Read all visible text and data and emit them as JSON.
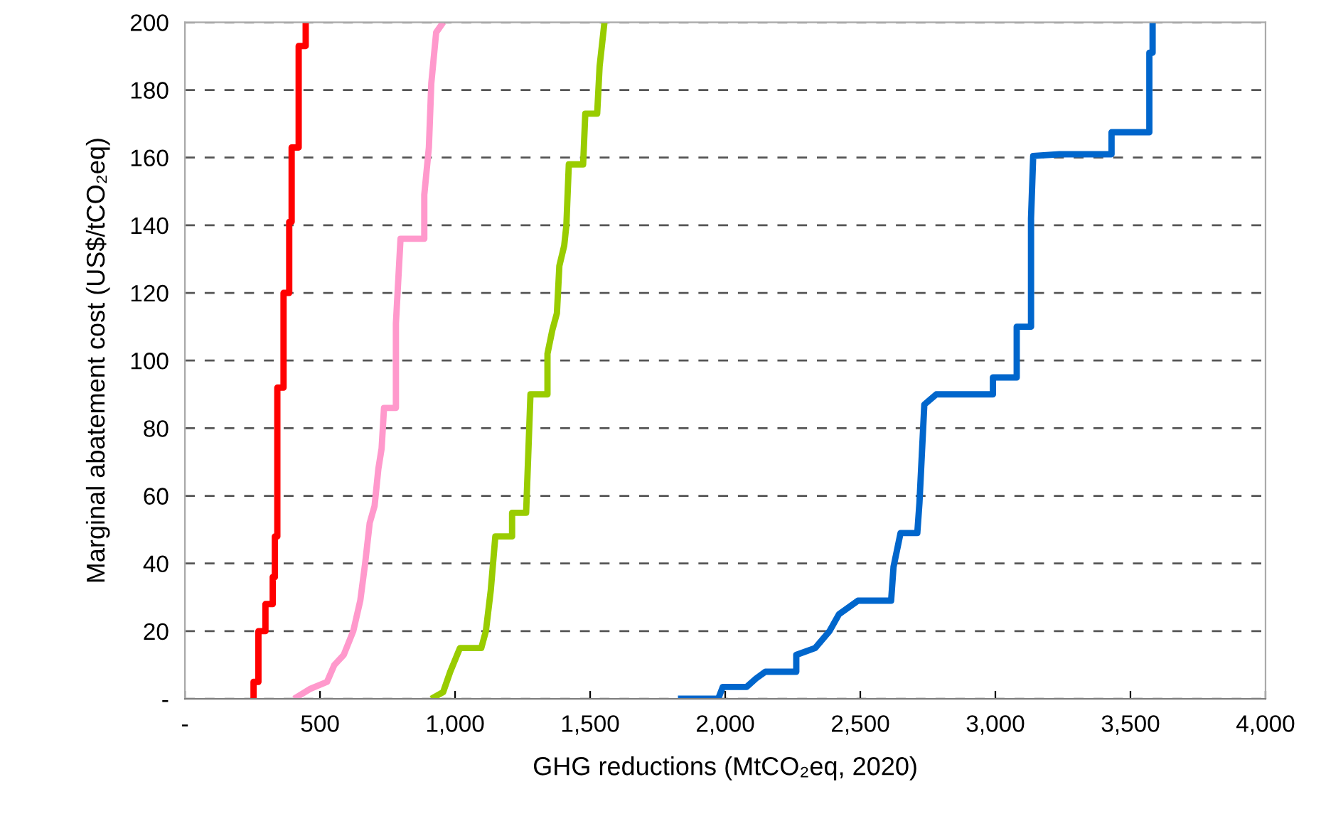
{
  "chart_data": {
    "type": "line",
    "xlabel": "GHG reductions (MtCO₂eq, 2020)",
    "ylabel": "Marginal abatement cost (US$/tCO₂eq)",
    "xlim": [
      0,
      4000
    ],
    "ylim": [
      0,
      200
    ],
    "xticks": [
      {
        "value": 0,
        "label": "-"
      },
      500,
      {
        "value": 1000,
        "label": "1,000"
      },
      {
        "value": 1500,
        "label": "1,500"
      },
      {
        "value": 2000,
        "label": "2,000"
      },
      {
        "value": 2500,
        "label": "2,500"
      },
      {
        "value": 3000,
        "label": "3,000"
      },
      {
        "value": 3500,
        "label": "3,500"
      },
      {
        "value": 4000,
        "label": "4,000"
      }
    ],
    "yticks": [
      {
        "value": 0,
        "label": "-"
      },
      20,
      40,
      60,
      80,
      100,
      120,
      140,
      160,
      180,
      200
    ],
    "grid": "y",
    "marker": "none",
    "line_style": "solid",
    "legend": false,
    "series": [
      {
        "color": "#ff0000",
        "x": [
          254,
          254,
          272,
          272,
          298,
          298,
          325,
          325,
          333,
          333,
          342,
          342,
          365,
          365,
          386,
          386,
          395,
          395,
          421,
          421,
          447,
          447
        ],
        "values": [
          0,
          5,
          5,
          20,
          20,
          28,
          28,
          36,
          36,
          48,
          48,
          92,
          92,
          120,
          120,
          141,
          141,
          163,
          163,
          193,
          193,
          200
        ]
      },
      {
        "color": "#ff99cc",
        "x": [
          404,
          465,
          526,
          553,
          588,
          623,
          649,
          667,
          684,
          702,
          716,
          728,
          737,
          781,
          781,
          798,
          886,
          886,
          903,
          912,
          930,
          956
        ],
        "values": [
          0,
          3,
          5,
          10,
          13,
          20,
          29,
          40,
          52,
          57,
          68,
          74,
          86,
          86,
          111,
          136,
          136,
          149,
          163,
          182,
          197,
          200
        ]
      },
      {
        "color": "#99cc00",
        "x": [
          912,
          956,
          982,
          1018,
          1097,
          1114,
          1132,
          1149,
          1211,
          1211,
          1263,
          1279,
          1342,
          1342,
          1360,
          1377,
          1386,
          1404,
          1412,
          1421,
          1474,
          1482,
          1526,
          1535,
          1553
        ],
        "values": [
          0,
          2,
          8,
          15,
          15,
          20,
          32,
          48,
          48,
          55,
          55,
          90,
          90,
          102,
          109,
          114,
          128,
          134,
          140,
          158,
          158,
          173,
          173,
          187,
          200
        ]
      },
      {
        "color": "#0066cc",
        "x": [
          1825,
          1974,
          1991,
          2079,
          2114,
          2149,
          2263,
          2263,
          2333,
          2386,
          2421,
          2491,
          2614,
          2623,
          2649,
          2711,
          2719,
          2737,
          2781,
          2991,
          2991,
          3079,
          3079,
          3132,
          3132,
          3140,
          3237,
          3430,
          3430,
          3570,
          3570,
          3582,
          3582
        ],
        "values": [
          0,
          0,
          3.5,
          3.5,
          6,
          8,
          8,
          13,
          15,
          20,
          25,
          29,
          29,
          39,
          49,
          49,
          58,
          87,
          90,
          90,
          95,
          95,
          110,
          110,
          142,
          160.5,
          161,
          161,
          167.5,
          167.5,
          191,
          191,
          200
        ]
      }
    ]
  }
}
